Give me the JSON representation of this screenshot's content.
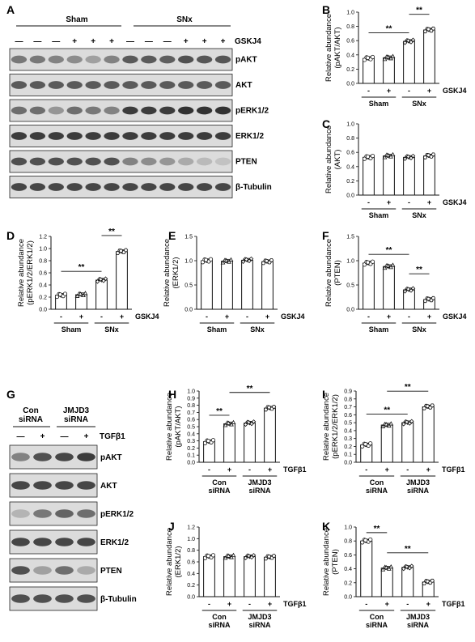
{
  "panel_labels": {
    "A": "A",
    "B": "B",
    "C": "C",
    "D": "D",
    "E": "E",
    "F": "F",
    "G": "G",
    "H": "H",
    "I": "I",
    "J": "J",
    "K": "K"
  },
  "blot_a": {
    "groups": [
      "Sham",
      "SNx"
    ],
    "treatment": "GSKJ4",
    "lane_signs": [
      "—",
      "—",
      "—",
      "+",
      "+",
      "+",
      "—",
      "—",
      "—",
      "+",
      "+",
      "+"
    ],
    "bands": [
      "pAKT",
      "AKT",
      "pERK1/2",
      "ERK1/2",
      "PTEN",
      "β-Tubulin"
    ]
  },
  "blot_g": {
    "groups": [
      [
        "Con",
        "siRNA"
      ],
      [
        "JMJD3",
        "siRNA"
      ]
    ],
    "treatment": "TGFβ1",
    "lane_signs": [
      "—",
      "+",
      "—",
      "+"
    ],
    "bands": [
      "pAKT",
      "AKT",
      "pERK1/2",
      "ERK1/2",
      "PTEN",
      "β-Tubulin"
    ]
  },
  "chart_data": [
    {
      "panel": "B",
      "type": "bar",
      "ylabel": [
        "Relative abundance",
        "(pAKT/AKT)"
      ],
      "ylim": [
        0,
        1.0
      ],
      "yticks": [
        0.0,
        0.2,
        0.4,
        0.6,
        0.8,
        1.0
      ],
      "pm": [
        "-",
        "+",
        "-",
        "+"
      ],
      "treatment": "GSKJ4",
      "groups": [
        [
          "Sham"
        ],
        [
          "SNx"
        ]
      ],
      "values": [
        0.35,
        0.36,
        0.59,
        0.75
      ],
      "markers": [
        "circle",
        "triangle",
        "diamond",
        "hex"
      ],
      "sig": [
        {
          "from": 0,
          "to": 2,
          "label": "**"
        },
        {
          "from": 2,
          "to": 3,
          "label": "**"
        }
      ]
    },
    {
      "panel": "C",
      "type": "bar",
      "ylabel": [
        "Relative abundance",
        "(AKT)"
      ],
      "ylim": [
        0,
        1.0
      ],
      "yticks": [
        0.0,
        0.2,
        0.4,
        0.6,
        0.8,
        1.0
      ],
      "pm": [
        "-",
        "+",
        "-",
        "+"
      ],
      "treatment": "GSKJ4",
      "groups": [
        [
          "Sham"
        ],
        [
          "SNx"
        ]
      ],
      "values": [
        0.53,
        0.55,
        0.53,
        0.55
      ],
      "markers": [
        "circle",
        "triangle",
        "diamond",
        "hex"
      ],
      "sig": []
    },
    {
      "panel": "D",
      "type": "bar",
      "ylabel": [
        "Relative abundance",
        "(pERK1/2/ERK1/2)"
      ],
      "ylim": [
        0,
        1.2
      ],
      "yticks": [
        0.0,
        0.2,
        0.4,
        0.6,
        0.8,
        1.0,
        1.2
      ],
      "pm": [
        "-",
        "+",
        "-",
        "+"
      ],
      "treatment": "GSKJ4",
      "groups": [
        [
          "Sham"
        ],
        [
          "SNx"
        ]
      ],
      "values": [
        0.23,
        0.24,
        0.48,
        0.95
      ],
      "markers": [
        "circle",
        "triangle",
        "diamond",
        "hex"
      ],
      "sig": [
        {
          "from": 0,
          "to": 2,
          "label": "**"
        },
        {
          "from": 2,
          "to": 3,
          "label": "**"
        }
      ]
    },
    {
      "panel": "E",
      "type": "bar",
      "ylabel": [
        "Relative abundance",
        "(ERK1/2)"
      ],
      "ylim": [
        0,
        1.5
      ],
      "yticks": [
        0.0,
        0.5,
        1.0,
        1.5
      ],
      "pm": [
        "-",
        "+",
        "-",
        "+"
      ],
      "treatment": "GSKJ4",
      "groups": [
        [
          "Sham"
        ],
        [
          "SNx"
        ]
      ],
      "values": [
        1.0,
        0.99,
        1.01,
        0.98
      ],
      "markers": [
        "circle",
        "triangle",
        "diamond",
        "hex"
      ],
      "sig": []
    },
    {
      "panel": "F",
      "type": "bar",
      "ylabel": [
        "Relative abundance",
        "(PTEN)"
      ],
      "ylim": [
        0,
        1.5
      ],
      "yticks": [
        0.0,
        0.5,
        1.0,
        1.5
      ],
      "pm": [
        "-",
        "+",
        "-",
        "+"
      ],
      "treatment": "GSKJ4",
      "groups": [
        [
          "Sham"
        ],
        [
          "SNx"
        ]
      ],
      "values": [
        0.95,
        0.88,
        0.4,
        0.2
      ],
      "markers": [
        "circle",
        "triangle",
        "diamond",
        "hex"
      ],
      "sig": [
        {
          "from": 0,
          "to": 2,
          "label": "**"
        },
        {
          "from": 2,
          "to": 3,
          "label": "**"
        }
      ]
    },
    {
      "panel": "H",
      "type": "bar",
      "ylabel": [
        "Relative abundance",
        "(pAKT/AKT)"
      ],
      "ylim": [
        0,
        1.0
      ],
      "yticks": [
        0.0,
        0.1,
        0.2,
        0.3,
        0.4,
        0.5,
        0.6,
        0.7,
        0.8,
        0.9,
        1.0
      ],
      "pm": [
        "-",
        "+",
        "-",
        "+"
      ],
      "treatment": "TGFβ1",
      "groups": [
        [
          "Con",
          "siRNA"
        ],
        [
          "JMJD3",
          "siRNA"
        ]
      ],
      "values": [
        0.29,
        0.54,
        0.55,
        0.76
      ],
      "markers": [
        "circle",
        "triangle",
        "diamond",
        "hex"
      ],
      "sig": [
        {
          "from": 0,
          "to": 1,
          "label": "**"
        },
        {
          "from": 1,
          "to": 3,
          "label": "**"
        }
      ]
    },
    {
      "panel": "I",
      "type": "bar",
      "ylabel": [
        "Relative abundance",
        "(pERK1/2/ERK1/2)"
      ],
      "ylim": [
        0,
        0.9
      ],
      "yticks": [
        0.0,
        0.1,
        0.2,
        0.3,
        0.4,
        0.5,
        0.6,
        0.7,
        0.8,
        0.9
      ],
      "pm": [
        "-",
        "+",
        "-",
        "+"
      ],
      "treatment": "TGFβ1",
      "groups": [
        [
          "Con",
          "siRNA"
        ],
        [
          "JMJD3",
          "siRNA"
        ]
      ],
      "values": [
        0.22,
        0.47,
        0.5,
        0.7
      ],
      "markers": [
        "circle",
        "triangle",
        "diamond",
        "hex"
      ],
      "sig": [
        {
          "from": 0,
          "to": 2,
          "label": "**"
        },
        {
          "from": 1,
          "to": 3,
          "label": "**"
        }
      ]
    },
    {
      "panel": "J",
      "type": "bar",
      "ylabel": [
        "Relative abundance",
        "(ERK1/2)"
      ],
      "ylim": [
        0,
        1.2
      ],
      "yticks": [
        0.0,
        0.2,
        0.4,
        0.6,
        0.8,
        1.0,
        1.2
      ],
      "pm": [
        "-",
        "+",
        "-",
        "+"
      ],
      "treatment": "TGFβ1",
      "groups": [
        [
          "Con",
          "siRNA"
        ],
        [
          "JMJD3",
          "siRNA"
        ]
      ],
      "values": [
        0.69,
        0.69,
        0.69,
        0.68
      ],
      "markers": [
        "circle",
        "triangle",
        "diamond",
        "hex"
      ],
      "sig": []
    },
    {
      "panel": "K",
      "type": "bar",
      "ylabel": [
        "Relative abundance",
        "(PTEN)"
      ],
      "ylim": [
        0,
        1.0
      ],
      "yticks": [
        0.0,
        0.2,
        0.4,
        0.6,
        0.8,
        1.0
      ],
      "pm": [
        "-",
        "+",
        "-",
        "+"
      ],
      "treatment": "TGFβ1",
      "groups": [
        [
          "Con",
          "siRNA"
        ],
        [
          "JMJD3",
          "siRNA"
        ]
      ],
      "values": [
        0.8,
        0.41,
        0.42,
        0.21
      ],
      "markers": [
        "circle",
        "triangle",
        "diamond",
        "hex"
      ],
      "sig": [
        {
          "from": 0,
          "to": 1,
          "label": "**"
        },
        {
          "from": 1,
          "to": 3,
          "label": "**"
        }
      ]
    }
  ]
}
